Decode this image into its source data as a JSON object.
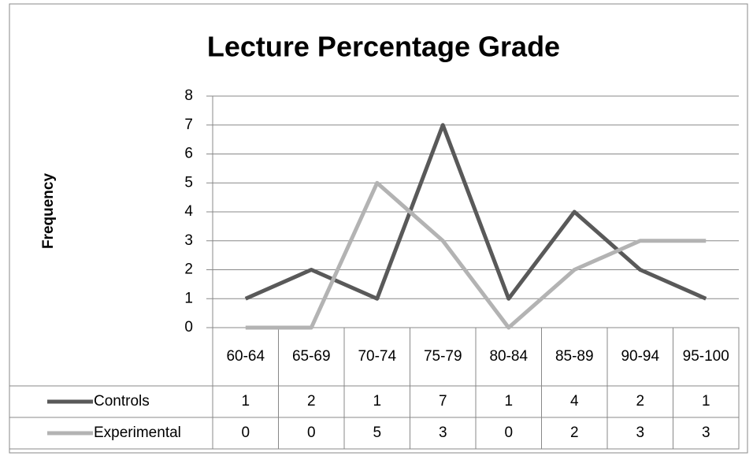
{
  "chart_data": {
    "type": "line",
    "title": "Lecture Percentage Grade",
    "y_label": "Frequency",
    "categories": [
      "60-64",
      "65-69",
      "70-74",
      "75-79",
      "80-84",
      "85-89",
      "90-94",
      "95-100"
    ],
    "series": [
      {
        "name": "Controls",
        "color": "#595959",
        "values": [
          1,
          2,
          1,
          7,
          1,
          4,
          2,
          1
        ]
      },
      {
        "name": "Experimental",
        "color": "#b3b3b3",
        "values": [
          0,
          0,
          5,
          3,
          0,
          2,
          3,
          3
        ]
      }
    ],
    "ylim": [
      0,
      8
    ],
    "yticks": [
      0,
      1,
      2,
      3,
      4,
      5,
      6,
      7,
      8
    ],
    "grid": true,
    "data_table": true
  }
}
